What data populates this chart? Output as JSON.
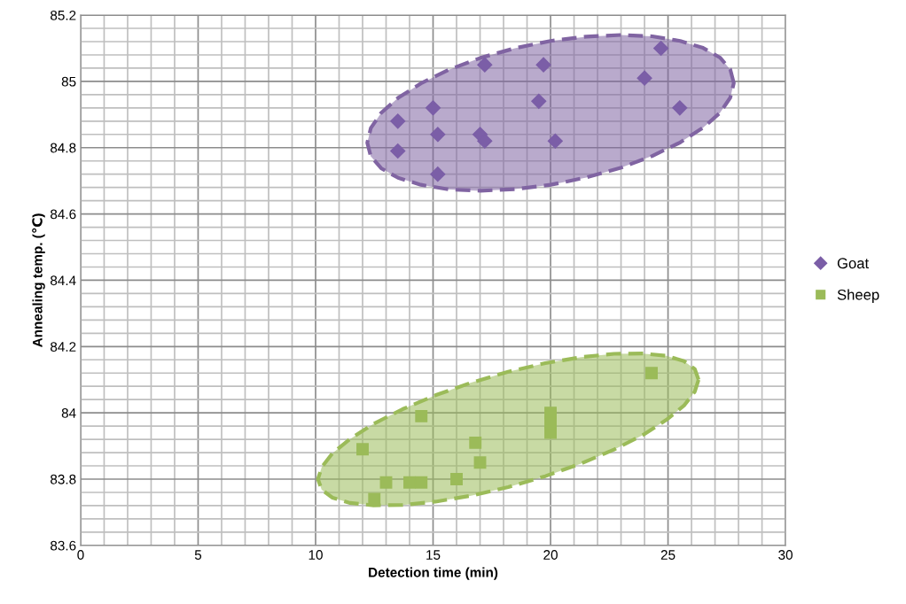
{
  "chart_data": {
    "type": "scatter",
    "xlabel": "Detection time (min)",
    "ylabel": "Annealing temp. (℃)",
    "xlim": [
      0,
      30
    ],
    "xticks": [
      0,
      5,
      10,
      15,
      20,
      25,
      30
    ],
    "ylim": [
      83.6,
      85.2
    ],
    "yticks": [
      83.6,
      83.8,
      84,
      84.2,
      84.4,
      84.6,
      84.8,
      85,
      85.2
    ],
    "grid": true,
    "legend": "right",
    "series": [
      {
        "type": "area",
        "color": "#8064a2",
        "line_style": "dashed",
        "x": [
          27.8,
          27.65,
          27.21,
          26.49,
          25.52,
          24.33,
          22.98,
          21.52,
          20.0,
          18.48,
          17.02,
          15.67,
          14.48,
          13.51,
          12.79,
          12.35,
          12.2,
          12.35,
          12.79,
          13.51,
          14.48,
          15.67,
          17.02,
          18.48,
          20.0,
          21.52,
          22.98,
          24.33,
          25.52,
          26.49,
          27.21,
          27.65
        ],
        "values": [
          84.995,
          85.036,
          85.072,
          85.101,
          85.122,
          85.136,
          85.14,
          85.135,
          85.122,
          85.1,
          85.071,
          85.035,
          84.994,
          84.95,
          84.905,
          84.859,
          84.815,
          84.774,
          84.738,
          84.709,
          84.688,
          84.674,
          84.67,
          84.675,
          84.688,
          84.71,
          84.739,
          84.775,
          84.816,
          84.86,
          84.905,
          84.951
        ]
      },
      {
        "type": "area",
        "color": "#9bbb59",
        "line_style": "dashed",
        "x": [
          26.3,
          26.14,
          25.68,
          24.93,
          23.93,
          22.7,
          21.3,
          19.78,
          18.2,
          16.62,
          15.1,
          13.7,
          12.47,
          11.47,
          10.72,
          10.26,
          10.1,
          10.26,
          10.72,
          11.47,
          12.47,
          13.7,
          15.1,
          16.62,
          18.2,
          19.78,
          21.3,
          22.7,
          23.93,
          24.93,
          25.68,
          26.14
        ],
        "values": [
          84.1,
          84.132,
          84.156,
          84.172,
          84.179,
          84.178,
          84.168,
          84.15,
          84.124,
          84.091,
          84.053,
          84.011,
          83.967,
          83.921,
          83.878,
          83.836,
          83.8,
          83.768,
          83.744,
          83.728,
          83.721,
          83.722,
          83.732,
          83.75,
          83.776,
          83.809,
          83.847,
          83.889,
          83.933,
          83.979,
          84.022,
          84.064
        ]
      },
      {
        "name": "Goat",
        "color": "#7b5ea7",
        "marker": "diamond",
        "x": [
          13.5,
          13.5,
          15,
          15.2,
          15.2,
          17,
          17.2,
          17.2,
          19.5,
          19.7,
          20.2,
          24,
          24.7,
          25.5
        ],
        "values": [
          84.88,
          84.79,
          84.92,
          84.84,
          84.72,
          84.84,
          84.82,
          85.05,
          84.94,
          85.05,
          84.82,
          85.01,
          85.1,
          84.92
        ]
      },
      {
        "name": "Sheep",
        "color": "#9bbb59",
        "marker": "square",
        "x": [
          12,
          12.5,
          13,
          14,
          14.5,
          14.5,
          16,
          16.8,
          17,
          20,
          20,
          20,
          24.3
        ],
        "values": [
          83.89,
          83.74,
          83.79,
          83.79,
          83.79,
          83.99,
          83.8,
          83.91,
          83.85,
          83.94,
          83.97,
          84,
          84.12
        ]
      }
    ]
  }
}
